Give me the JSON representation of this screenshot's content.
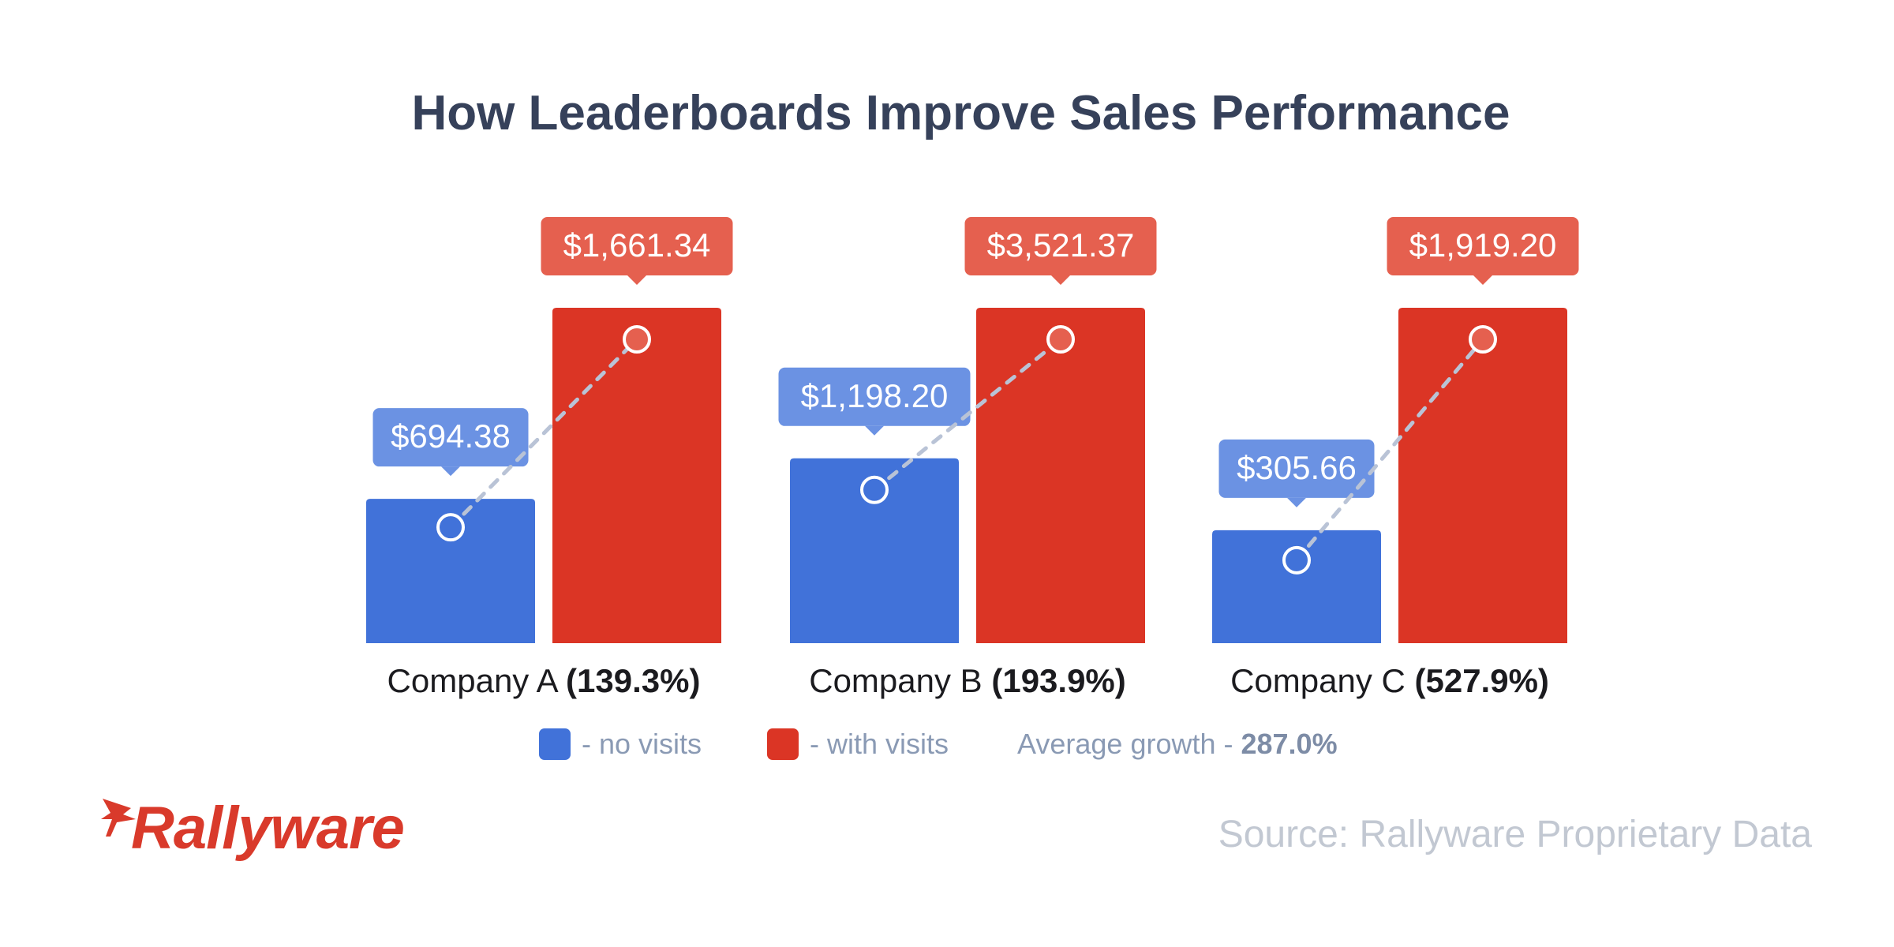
{
  "chart_data": {
    "type": "bar",
    "title": "How Leaderboards Improve Sales Performance",
    "categories": [
      "Company A",
      "Company B",
      "Company C"
    ],
    "growth_labels": [
      "(139.3%)",
      "(193.9%)",
      "(527.9%)"
    ],
    "series": [
      {
        "name": "no visits",
        "values": [
          694.38,
          1198.2,
          305.66
        ],
        "labels": [
          "$694.38",
          "$1,198.20",
          "$305.66"
        ],
        "color": "#4172d9",
        "label_color": "#6b92e3"
      },
      {
        "name": "with visits",
        "values": [
          1661.34,
          3521.37,
          1919.2
        ],
        "labels": [
          "$1,661.34",
          "$3,521.37",
          "$1,919.20"
        ],
        "color": "#db3525",
        "label_color": "#e5604f"
      }
    ],
    "grid": false
  },
  "legend": {
    "no_visits_label": "- no visits",
    "with_visits_label": "- with visits",
    "average_label": "Average growth -",
    "average_value": "287.0%"
  },
  "logo": {
    "text": "Rallyware",
    "color": "#d93a2b"
  },
  "source": "Source: Rallyware Proprietary Data",
  "colors": {
    "title": "#36415a",
    "connector": "#b9c3d6"
  }
}
